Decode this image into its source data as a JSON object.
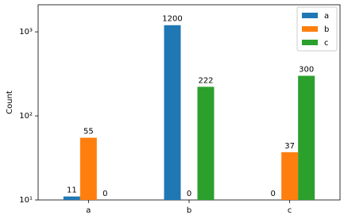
{
  "chart_data": {
    "type": "bar",
    "categories": [
      "a",
      "b",
      "c"
    ],
    "series": [
      {
        "name": "a",
        "color": "#1f77b4",
        "values": [
          11,
          1200,
          0
        ]
      },
      {
        "name": "b",
        "color": "#ff7f0e",
        "values": [
          55,
          0,
          37
        ]
      },
      {
        "name": "c",
        "color": "#2ca02c",
        "values": [
          0,
          222,
          300
        ]
      }
    ],
    "y_label": "Count",
    "log_scale": true,
    "ylim": [
      10,
      2100
    ],
    "yticks": [
      {
        "value": 10,
        "label": "10¹"
      },
      {
        "value": 100,
        "label": "10²"
      },
      {
        "value": 1000,
        "label": "10³"
      }
    ],
    "legend": "upper right"
  }
}
